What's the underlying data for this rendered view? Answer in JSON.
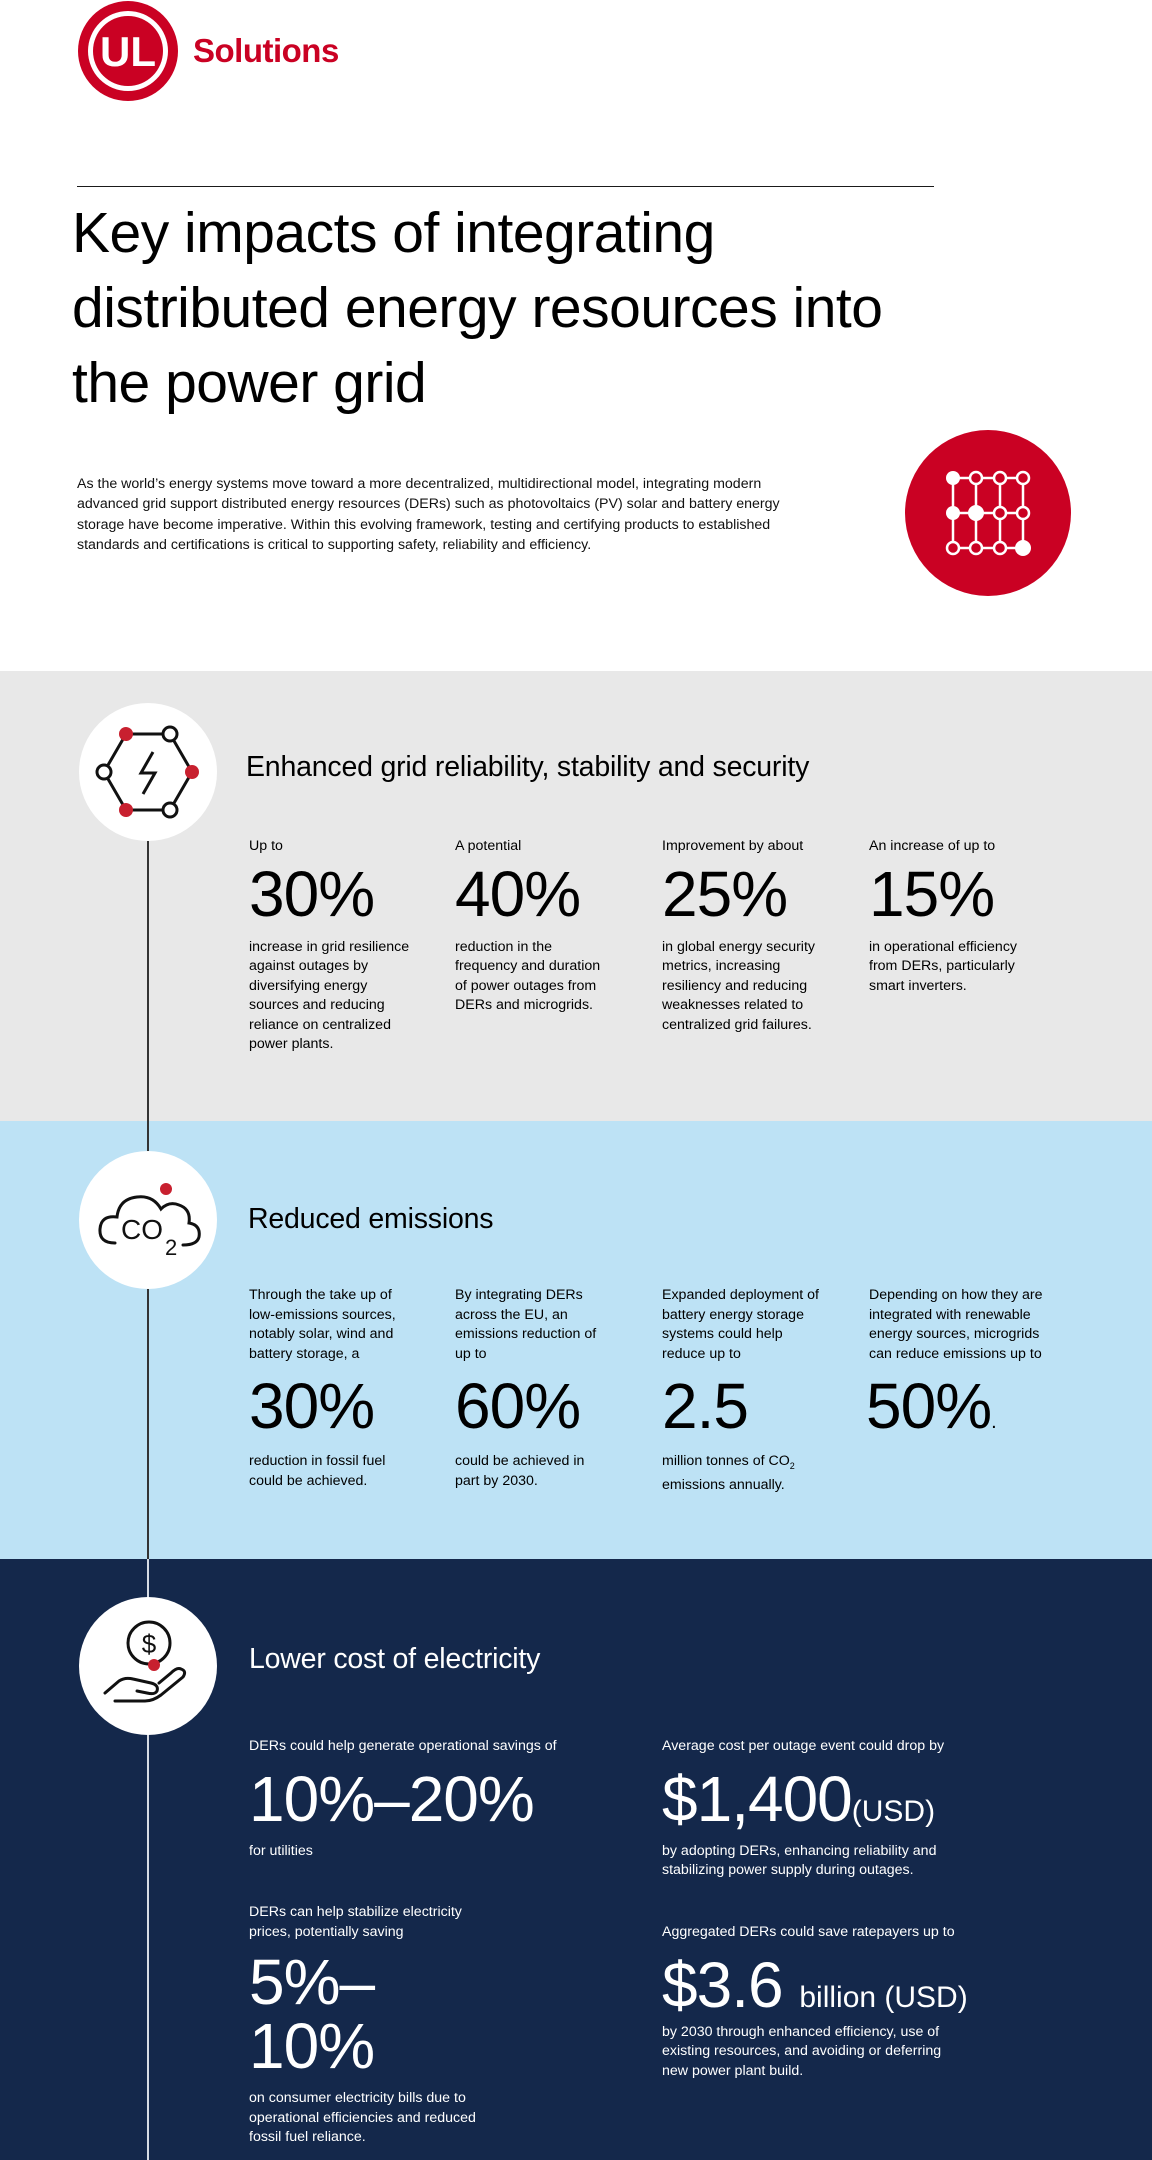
{
  "brand": {
    "logo_mark": "UL",
    "logo_word": "Solutions",
    "color": "#ca0123"
  },
  "title": "Key impacts of integrating distributed energy resources into the power grid",
  "intro": "As the world’s energy systems move toward a more decentralized, multidirectional model, integrating modern advanced grid support distributed energy resources (DERs) such as photovoltaics (PV) solar and battery energy storage have become imperative. Within this evolving framework, testing and certifying products to established standards and certifications is critical to supporting safety, reliability and efficiency.",
  "hero_icon": "network-grid-icon",
  "colors": {
    "grey_band": "#e8e8e8",
    "blue_band": "#bde2f5",
    "navy_band": "#14284b",
    "accent_red": "#ca0123"
  },
  "sections": [
    {
      "icon": "power-network-icon",
      "heading": "Enhanced grid reliability, stability and security",
      "stats": [
        {
          "pre": "Up to",
          "value": "30%",
          "desc": "increase in grid resilience against outages by diversifying energy sources and reducing reliance on centralized power plants."
        },
        {
          "pre": "A potential",
          "value": "40%",
          "desc": "reduction in the frequency and duration of power outages from DERs and microgrids."
        },
        {
          "pre": "Improvement by about",
          "value": "25%",
          "desc": "in global energy security metrics, increasing resiliency and reducing weaknesses related to centralized grid failures."
        },
        {
          "pre": "An increase of up to",
          "value": "15%",
          "desc": "in operational efficiency from DERs, particularly smart inverters."
        }
      ]
    },
    {
      "icon": "co2-cloud-icon",
      "heading": "Reduced emissions",
      "stats": [
        {
          "pre": "Through the take up of low-emissions sources, notably solar, wind and battery storage, a",
          "value": "30%",
          "desc": "reduction in fossil fuel could be achieved."
        },
        {
          "pre": "By integrating DERs across the EU, an emissions reduction of up to",
          "value": "60%",
          "desc": "could be achieved in part by 2030."
        },
        {
          "pre": "Expanded deployment of battery energy storage systems could help reduce up to",
          "value": "2.5",
          "desc_a": "million tonnes of CO",
          "desc_sub": "2",
          "desc_b": "emissions annually."
        },
        {
          "pre": "Depending on how they are integrated with renewable energy sources, microgrids can reduce emissions up to",
          "value": "50%",
          "trail": "."
        }
      ]
    },
    {
      "icon": "hand-dollar-icon",
      "heading": "Lower cost of electricity",
      "stats": [
        {
          "pre": "DERs could help generate operational savings of",
          "value": "10%–20%",
          "desc": "for utilities"
        },
        {
          "pre": "Average cost per outage event could drop by",
          "value": "$1,400",
          "unit": "(USD)",
          "desc": "by adopting DERs, enhancing reliability and stabilizing power supply during outages."
        },
        {
          "pre": "DERs can help stabilize electricity prices, potentially saving",
          "value": "5%–10%",
          "desc": "on consumer electricity bills due to operational efficiencies and reduced fossil fuel reliance."
        },
        {
          "pre": "Aggregated DERs could save ratepayers up to",
          "value": "$3.6",
          "unit": "billion (USD)",
          "desc": "by 2030 through enhanced efficiency, use of existing resources, and avoiding or deferring new power plant build."
        }
      ]
    }
  ]
}
